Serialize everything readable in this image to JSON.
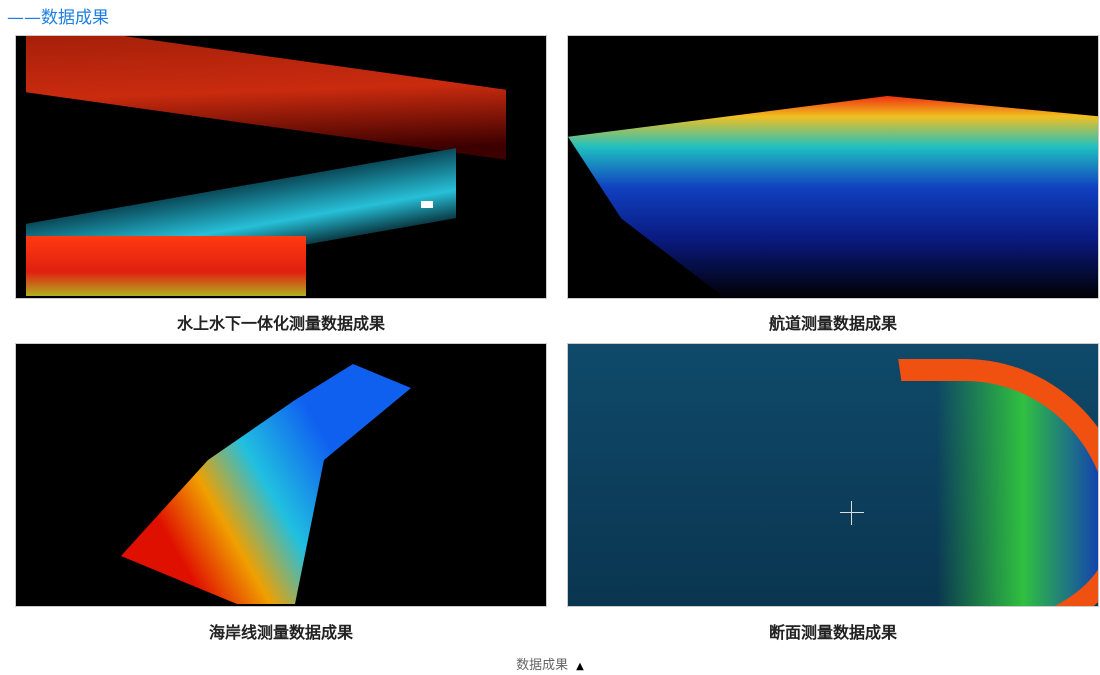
{
  "section_title": "——数据成果",
  "items": [
    {
      "caption": "水上水下一体化测量数据成果"
    },
    {
      "caption": "航道测量数据成果"
    },
    {
      "caption": "海岸线测量数据成果"
    },
    {
      "caption": "断面测量数据成果"
    }
  ],
  "footer": {
    "label": "数据成果",
    "toggle_icon": "triangle-up-icon"
  }
}
